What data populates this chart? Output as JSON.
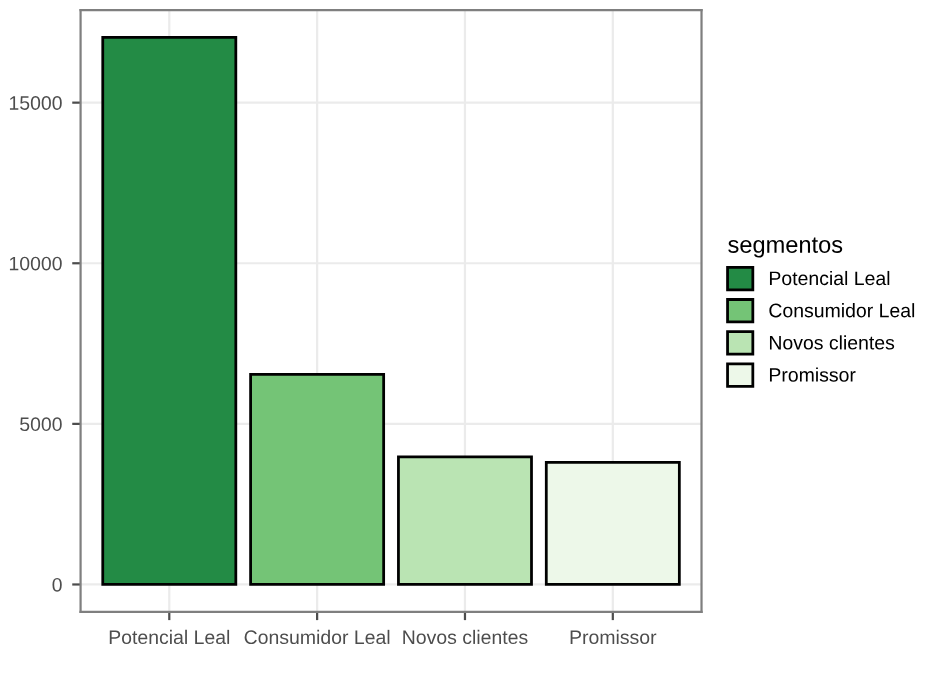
{
  "chart_data": {
    "type": "bar",
    "categories": [
      "Potencial Leal",
      "Consumidor Leal",
      "Novos clientes",
      "Promissor"
    ],
    "series": [
      {
        "name": "Potencial Leal",
        "color": "#238b45",
        "values": [
          17030,
          null,
          null,
          null
        ]
      },
      {
        "name": "Consumidor Leal",
        "color": "#74c476",
        "values": [
          null,
          6540,
          null,
          null
        ]
      },
      {
        "name": "Novos clientes",
        "color": "#bae4b3",
        "values": [
          null,
          null,
          3970,
          null
        ]
      },
      {
        "name": "Promissor",
        "color": "#edf8e9",
        "values": [
          null,
          null,
          null,
          3800
        ]
      }
    ],
    "ylim": [
      -850,
      17880
    ],
    "yticks": [
      0,
      5000,
      10000,
      15000
    ],
    "grid": true,
    "legend": "right",
    "legend_title": "segmentos"
  }
}
